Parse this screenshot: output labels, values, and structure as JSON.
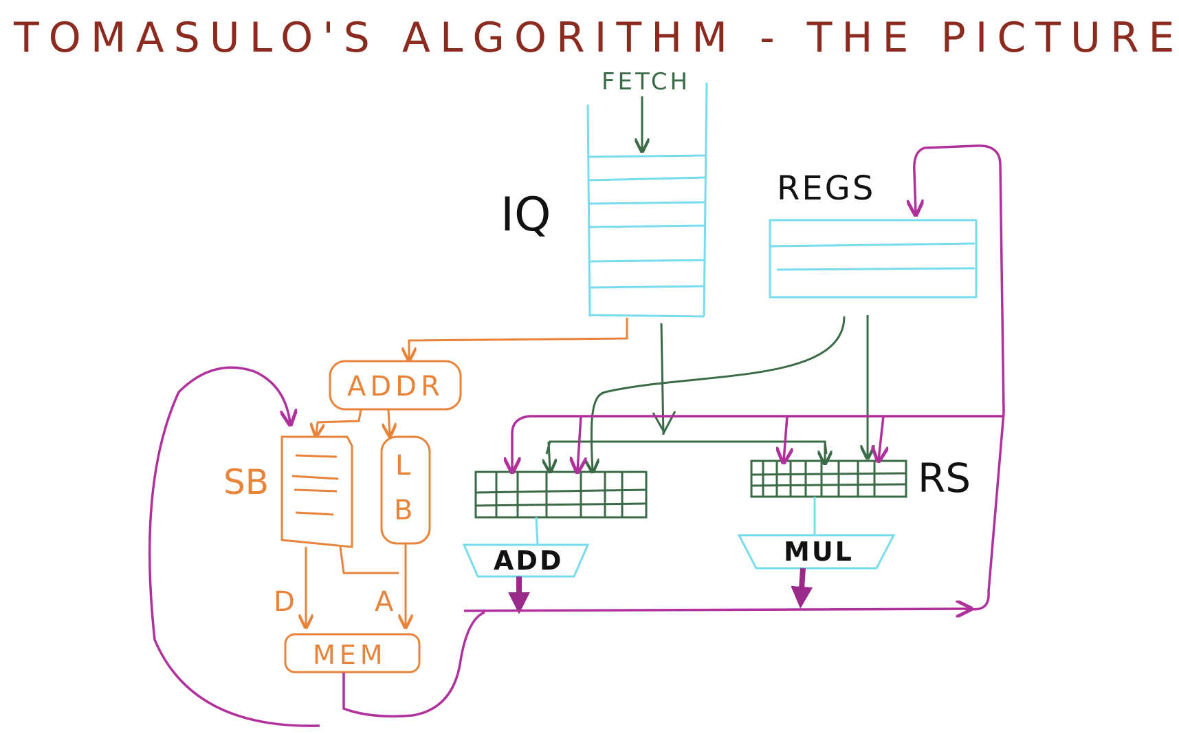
{
  "title": "TOMASULO'S ALGORITHM - THE PICTURE",
  "labels": {
    "fetch": "FETCH",
    "iq": "IQ",
    "regs": "REGS",
    "addr": "ADDR",
    "sb": "SB",
    "lb_l": "L",
    "lb_b": "B",
    "rs": "RS",
    "add": "ADD",
    "mul": "MUL",
    "mem": "MEM",
    "d": "D",
    "a": "A"
  },
  "colors": {
    "title": "#8b2a1e",
    "cyan": "#79dcec",
    "green": "#3a6a46",
    "orange": "#e8843a",
    "purple": "#b0309c",
    "black": "#111111"
  }
}
